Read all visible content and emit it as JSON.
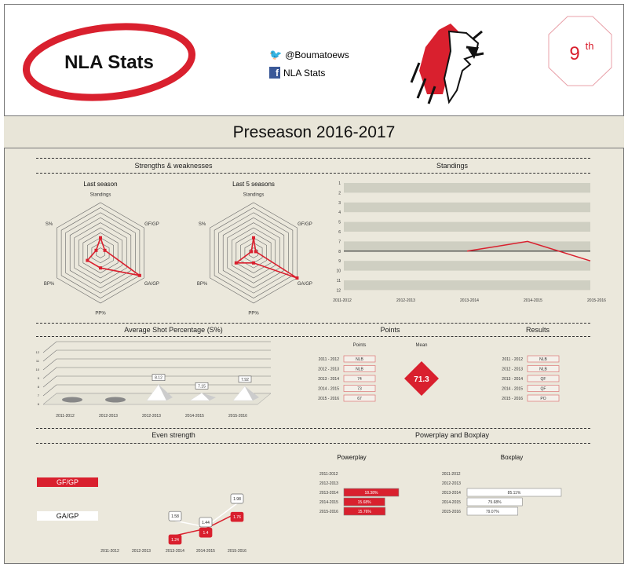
{
  "header": {
    "logo_text": "NLA Stats",
    "twitter": "@Boumatoews",
    "facebook": "NLA Stats",
    "rank_num": "9",
    "rank_suffix": "th"
  },
  "title": "Preseason 2016-2017",
  "sections": {
    "strengths": "Strengths & weaknesses",
    "standings": "Standings",
    "shot": "Average Shot Percentage (S%)",
    "points": "Points",
    "results": "Results",
    "even": "Even strength",
    "ppbp": "Powerplay and Boxplay"
  },
  "colors": {
    "accent": "#d9202e",
    "background": "#ebe8dc",
    "band": "#cfcfc2"
  },
  "chart_data": [
    {
      "type": "radar",
      "title": "Last season",
      "axes": [
        "Standings",
        "GF/GP",
        "GA/GP",
        "PP%",
        "BP%",
        "S%"
      ],
      "values": [
        3,
        1,
        9,
        3,
        3,
        1
      ],
      "range": [
        0,
        10
      ]
    },
    {
      "type": "radar",
      "title": "Last 5 seasons",
      "axes": [
        "Standings",
        "GF/GP",
        "GA/GP",
        "PP%",
        "BP%",
        "S%"
      ],
      "values": [
        3,
        0.5,
        10,
        2,
        4,
        0.5
      ],
      "range": [
        0,
        10
      ]
    },
    {
      "type": "line",
      "title": "Standings",
      "categories": [
        "2011-2012",
        "2012-2013",
        "2013-2014",
        "2014-2015",
        "2015-2016"
      ],
      "values": [
        null,
        null,
        8,
        7,
        9
      ],
      "ylim": [
        1,
        12
      ],
      "yticks": [
        1,
        2,
        3,
        4,
        5,
        6,
        7,
        8,
        9,
        10,
        11,
        12
      ],
      "reference_line": 8,
      "y_reversed": true
    },
    {
      "type": "bar",
      "title": "Average Shot Percentage (S%)",
      "categories": [
        "2011-2012",
        "2012-2013",
        "2012-2013",
        "2014-2015",
        "2015-2016"
      ],
      "values": [
        null,
        null,
        8.12,
        7.15,
        7.92
      ],
      "labels": [
        "",
        "",
        "8.12",
        "7.15",
        "7.92"
      ],
      "ylim": [
        6,
        12
      ],
      "yticks": [
        6,
        7,
        8,
        9,
        10,
        11,
        12
      ]
    },
    {
      "type": "table",
      "title": "Points",
      "header": "Points",
      "mean_label": "Mean",
      "mean": "71.3",
      "rows": [
        {
          "season": "2011 - 2012",
          "value": "NLB"
        },
        {
          "season": "2012 - 2013",
          "value": "NLB"
        },
        {
          "season": "2013 - 2014",
          "value": "74"
        },
        {
          "season": "2014 - 2015",
          "value": "73"
        },
        {
          "season": "2015 - 2016",
          "value": "67"
        }
      ]
    },
    {
      "type": "table",
      "title": "Results",
      "rows": [
        {
          "season": "2011 - 2012",
          "value": "NLB"
        },
        {
          "season": "2012 - 2013",
          "value": "NLB"
        },
        {
          "season": "2013 - 2014",
          "value": "QF"
        },
        {
          "season": "2014 - 2015",
          "value": "QF"
        },
        {
          "season": "2015 - 2016",
          "value": "PO"
        }
      ]
    },
    {
      "type": "line",
      "title": "Even strength",
      "categories": [
        "2011-2012",
        "2012-2013",
        "2013-2014",
        "2014-2015",
        "2015-2016"
      ],
      "series": [
        {
          "name": "GF/GP",
          "values": [
            null,
            null,
            1.24,
            1.4,
            1.76
          ],
          "labels": [
            "",
            "",
            "1.24",
            "1.4",
            "1.76"
          ],
          "color": "#d9202e"
        },
        {
          "name": "GA/GP",
          "values": [
            null,
            null,
            1.58,
            1.44,
            1.98
          ],
          "labels": [
            "",
            "",
            "1.58",
            "1.44",
            "1.98"
          ],
          "color": "#ffffff"
        }
      ]
    },
    {
      "type": "bar",
      "title": "Powerplay",
      "orientation": "horizontal",
      "categories": [
        "2011-2012",
        "2012-2013",
        "2013-2014",
        "2014-2015",
        "2015-2016"
      ],
      "values": [
        null,
        null,
        18.38,
        15.68,
        15.76
      ],
      "labels": [
        "",
        "",
        "18.38%",
        "15.68%",
        "15.76%"
      ]
    },
    {
      "type": "bar",
      "title": "Boxplay",
      "orientation": "horizontal",
      "categories": [
        "2011-2012",
        "2012-2013",
        "2013-2014",
        "2014-2015",
        "2015-2016"
      ],
      "values": [
        null,
        null,
        85.11,
        79.68,
        79.07
      ],
      "labels": [
        "",
        "",
        "85.11%",
        "79.68%",
        "79.07%"
      ]
    }
  ]
}
